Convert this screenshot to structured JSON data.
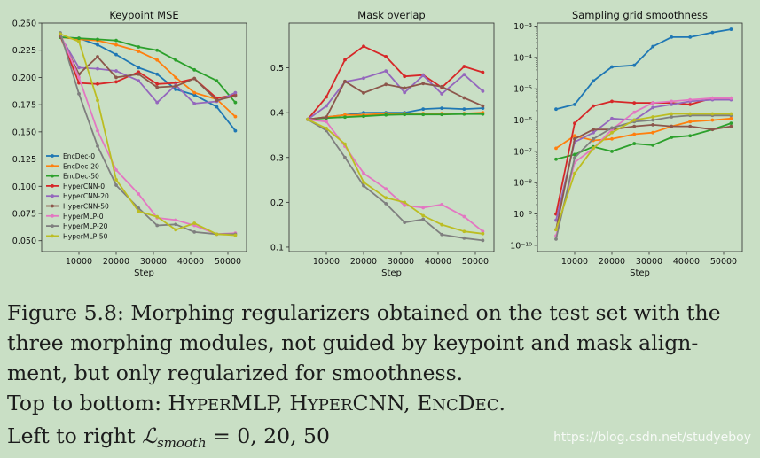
{
  "colors": {
    "EncDec-0": "#1f77b4",
    "EncDec-20": "#ff7f0e",
    "EncDec-50": "#2ca02c",
    "HyperCNN-0": "#d62728",
    "HyperCNN-20": "#9467bd",
    "HyperCNN-50": "#8c564b",
    "HyperMLP-0": "#e377c2",
    "HyperMLP-20": "#7f7f7f",
    "HyperMLP-50": "#bcbd22"
  },
  "chart_data": [
    {
      "type": "line",
      "title": "Keypoint MSE",
      "xlabel": "Step",
      "ylabel": "",
      "xlim": [
        0,
        55000
      ],
      "ylim": [
        0.04,
        0.25
      ],
      "xticks": [
        10000,
        20000,
        30000,
        40000,
        50000
      ],
      "xtick_labels": [
        "10000",
        "20000",
        "30000",
        "40000",
        "50000"
      ],
      "yticks": [
        0.05,
        0.075,
        0.1,
        0.125,
        0.15,
        0.175,
        0.2,
        0.225,
        0.25
      ],
      "ytick_labels": [
        "0.050",
        "0.075",
        "0.100",
        "0.125",
        "0.150",
        "0.175",
        "0.200",
        "0.225",
        "0.250"
      ],
      "legend_position": "lower-left",
      "x": [
        5000,
        10000,
        15000,
        20000,
        26000,
        31000,
        36000,
        41000,
        47000,
        52000
      ],
      "series": [
        {
          "name": "EncDec-0",
          "values": [
            0.237,
            0.236,
            0.23,
            0.221,
            0.209,
            0.203,
            0.189,
            0.184,
            0.173,
            0.151
          ]
        },
        {
          "name": "EncDec-20",
          "values": [
            0.237,
            0.235,
            0.234,
            0.23,
            0.224,
            0.216,
            0.2,
            0.186,
            0.18,
            0.164
          ]
        },
        {
          "name": "EncDec-50",
          "values": [
            0.237,
            0.236,
            0.235,
            0.234,
            0.228,
            0.225,
            0.216,
            0.207,
            0.197,
            0.177
          ]
        },
        {
          "name": "HyperCNN-0",
          "values": [
            0.238,
            0.195,
            0.194,
            0.196,
            0.205,
            0.194,
            0.195,
            0.199,
            0.181,
            0.184
          ]
        },
        {
          "name": "HyperCNN-20",
          "values": [
            0.238,
            0.209,
            0.208,
            0.206,
            0.197,
            0.177,
            0.193,
            0.176,
            0.178,
            0.186
          ]
        },
        {
          "name": "HyperCNN-50",
          "values": [
            0.238,
            0.203,
            0.219,
            0.2,
            0.203,
            0.191,
            0.192,
            0.199,
            0.179,
            0.183
          ]
        },
        {
          "name": "HyperMLP-0",
          "values": [
            0.24,
            0.2,
            0.151,
            0.115,
            0.093,
            0.071,
            0.069,
            0.064,
            0.056,
            0.057
          ]
        },
        {
          "name": "HyperMLP-20",
          "values": [
            0.241,
            0.185,
            0.137,
            0.101,
            0.08,
            0.064,
            0.065,
            0.058,
            0.056,
            0.056
          ]
        },
        {
          "name": "HyperMLP-50",
          "values": [
            0.24,
            0.233,
            0.179,
            0.106,
            0.077,
            0.072,
            0.06,
            0.066,
            0.056,
            0.055
          ]
        }
      ]
    },
    {
      "type": "line",
      "title": "Mask overlap",
      "xlabel": "Step",
      "ylabel": "",
      "xlim": [
        0,
        55000
      ],
      "ylim": [
        0.09,
        0.6
      ],
      "xticks": [
        10000,
        20000,
        30000,
        40000,
        50000
      ],
      "xtick_labels": [
        "10000",
        "20000",
        "30000",
        "40000",
        "50000"
      ],
      "yticks": [
        0.1,
        0.2,
        0.3,
        0.4,
        0.5
      ],
      "ytick_labels": [
        "0.1",
        "0.2",
        "0.3",
        "0.4",
        "0.5"
      ],
      "x": [
        5000,
        10000,
        15000,
        20000,
        26000,
        31000,
        36000,
        41000,
        47000,
        52000
      ],
      "series": [
        {
          "name": "EncDec-0",
          "values": [
            0.385,
            0.39,
            0.395,
            0.4,
            0.4,
            0.4,
            0.408,
            0.41,
            0.408,
            0.41
          ]
        },
        {
          "name": "EncDec-20",
          "values": [
            0.385,
            0.39,
            0.395,
            0.395,
            0.398,
            0.398,
            0.398,
            0.398,
            0.398,
            0.4
          ]
        },
        {
          "name": "EncDec-50",
          "values": [
            0.385,
            0.388,
            0.39,
            0.392,
            0.395,
            0.396,
            0.396,
            0.396,
            0.397,
            0.397
          ]
        },
        {
          "name": "HyperCNN-0",
          "values": [
            0.385,
            0.435,
            0.518,
            0.548,
            0.525,
            0.481,
            0.484,
            0.456,
            0.503,
            0.49
          ]
        },
        {
          "name": "HyperCNN-20",
          "values": [
            0.385,
            0.415,
            0.469,
            0.477,
            0.493,
            0.445,
            0.483,
            0.442,
            0.485,
            0.448
          ]
        },
        {
          "name": "HyperCNN-50",
          "values": [
            0.385,
            0.39,
            0.47,
            0.444,
            0.463,
            0.455,
            0.465,
            0.458,
            0.433,
            0.415
          ]
        },
        {
          "name": "HyperMLP-0",
          "values": [
            0.385,
            0.38,
            0.325,
            0.265,
            0.23,
            0.193,
            0.188,
            0.195,
            0.168,
            0.135
          ]
        },
        {
          "name": "HyperMLP-20",
          "values": [
            0.385,
            0.36,
            0.3,
            0.237,
            0.197,
            0.155,
            0.162,
            0.128,
            0.12,
            0.115
          ]
        },
        {
          "name": "HyperMLP-50",
          "values": [
            0.385,
            0.365,
            0.33,
            0.245,
            0.21,
            0.2,
            0.17,
            0.15,
            0.135,
            0.13
          ]
        }
      ]
    },
    {
      "type": "line",
      "title": "Sampling grid smoothness",
      "xlabel": "Step",
      "ylabel": "",
      "yscale": "log",
      "xlim": [
        0,
        55000
      ],
      "ylim_log10": [
        -10.2,
        -2.9
      ],
      "xticks": [
        10000,
        20000,
        30000,
        40000,
        50000
      ],
      "xtick_labels": [
        "10000",
        "20000",
        "30000",
        "40000",
        "50000"
      ],
      "yticks_log10": [
        -10,
        -9,
        -8,
        -7,
        -6,
        -5,
        -4,
        -3
      ],
      "ytick_labels": [
        "10⁻¹⁰",
        "10⁻⁹",
        "10⁻⁸",
        "10⁻⁷",
        "10⁻⁶",
        "10⁻⁵",
        "10⁻⁴",
        "10⁻³"
      ],
      "x": [
        5000,
        10000,
        15000,
        20000,
        26000,
        31000,
        36000,
        41000,
        47000,
        52000
      ],
      "series_log10": [
        {
          "name": "EncDec-0",
          "values": [
            -5.65,
            -5.5,
            -4.75,
            -4.3,
            -4.25,
            -3.65,
            -3.35,
            -3.35,
            -3.2,
            -3.1
          ]
        },
        {
          "name": "EncDec-20",
          "values": [
            -6.9,
            -6.5,
            -6.65,
            -6.6,
            -6.45,
            -6.4,
            -6.2,
            -6.05,
            -6.0,
            -5.95
          ]
        },
        {
          "name": "EncDec-50",
          "values": [
            -7.25,
            -7.1,
            -6.85,
            -7.0,
            -6.75,
            -6.8,
            -6.55,
            -6.5,
            -6.3,
            -6.1
          ]
        },
        {
          "name": "HyperCNN-0",
          "values": [
            -9.0,
            -6.1,
            -5.55,
            -5.4,
            -5.45,
            -5.45,
            -5.45,
            -5.5,
            -5.3,
            -5.3
          ]
        },
        {
          "name": "HyperCNN-20",
          "values": [
            -9.2,
            -6.7,
            -6.4,
            -5.95,
            -6.0,
            -5.6,
            -5.5,
            -5.4,
            -5.35,
            -5.35
          ]
        },
        {
          "name": "HyperCNN-50",
          "values": [
            -9.5,
            -6.6,
            -6.3,
            -6.3,
            -6.2,
            -6.15,
            -6.2,
            -6.2,
            -6.3,
            -6.2
          ]
        },
        {
          "name": "HyperMLP-0",
          "values": [
            -9.7,
            -7.35,
            -6.9,
            -6.3,
            -5.75,
            -5.45,
            -5.4,
            -5.35,
            -5.3,
            -5.3
          ]
        },
        {
          "name": "HyperMLP-20",
          "values": [
            -9.8,
            -7.2,
            -6.6,
            -6.25,
            -6.05,
            -6.0,
            -5.9,
            -5.85,
            -5.85,
            -5.85
          ]
        },
        {
          "name": "HyperMLP-50",
          "values": [
            -9.5,
            -7.7,
            -6.9,
            -6.4,
            -6.0,
            -5.9,
            -5.8,
            -5.8,
            -5.8,
            -5.8
          ]
        }
      ]
    }
  ],
  "caption": {
    "line1_part1": "Figure 5.8: Morphing regularizers obtained on the test set with the",
    "line2": "three morphing modules, not guided by keypoint and mask align-",
    "line3": "ment, but only regularized for smoothness.",
    "line4_prefix": "Top to bottom: ",
    "m1_cap1": "H",
    "m1_rest1": "YPER",
    "m1_cap2": "MLP",
    "sep1": ", ",
    "m2_cap1": "H",
    "m2_rest1": "YPER",
    "m2_cap2": "CNN",
    "sep2": ", ",
    "m3_cap1": "E",
    "m3_rest1": "NC",
    "m3_cap2": "D",
    "m3_rest2": "EC",
    "end": ".",
    "line5_prefix": "Left to right ",
    "math_symbol": "ℒ",
    "math_sub": "smooth",
    "math_rest": " = 0, 20, 50"
  },
  "watermark": "https://blog.csdn.net/studyeboy"
}
